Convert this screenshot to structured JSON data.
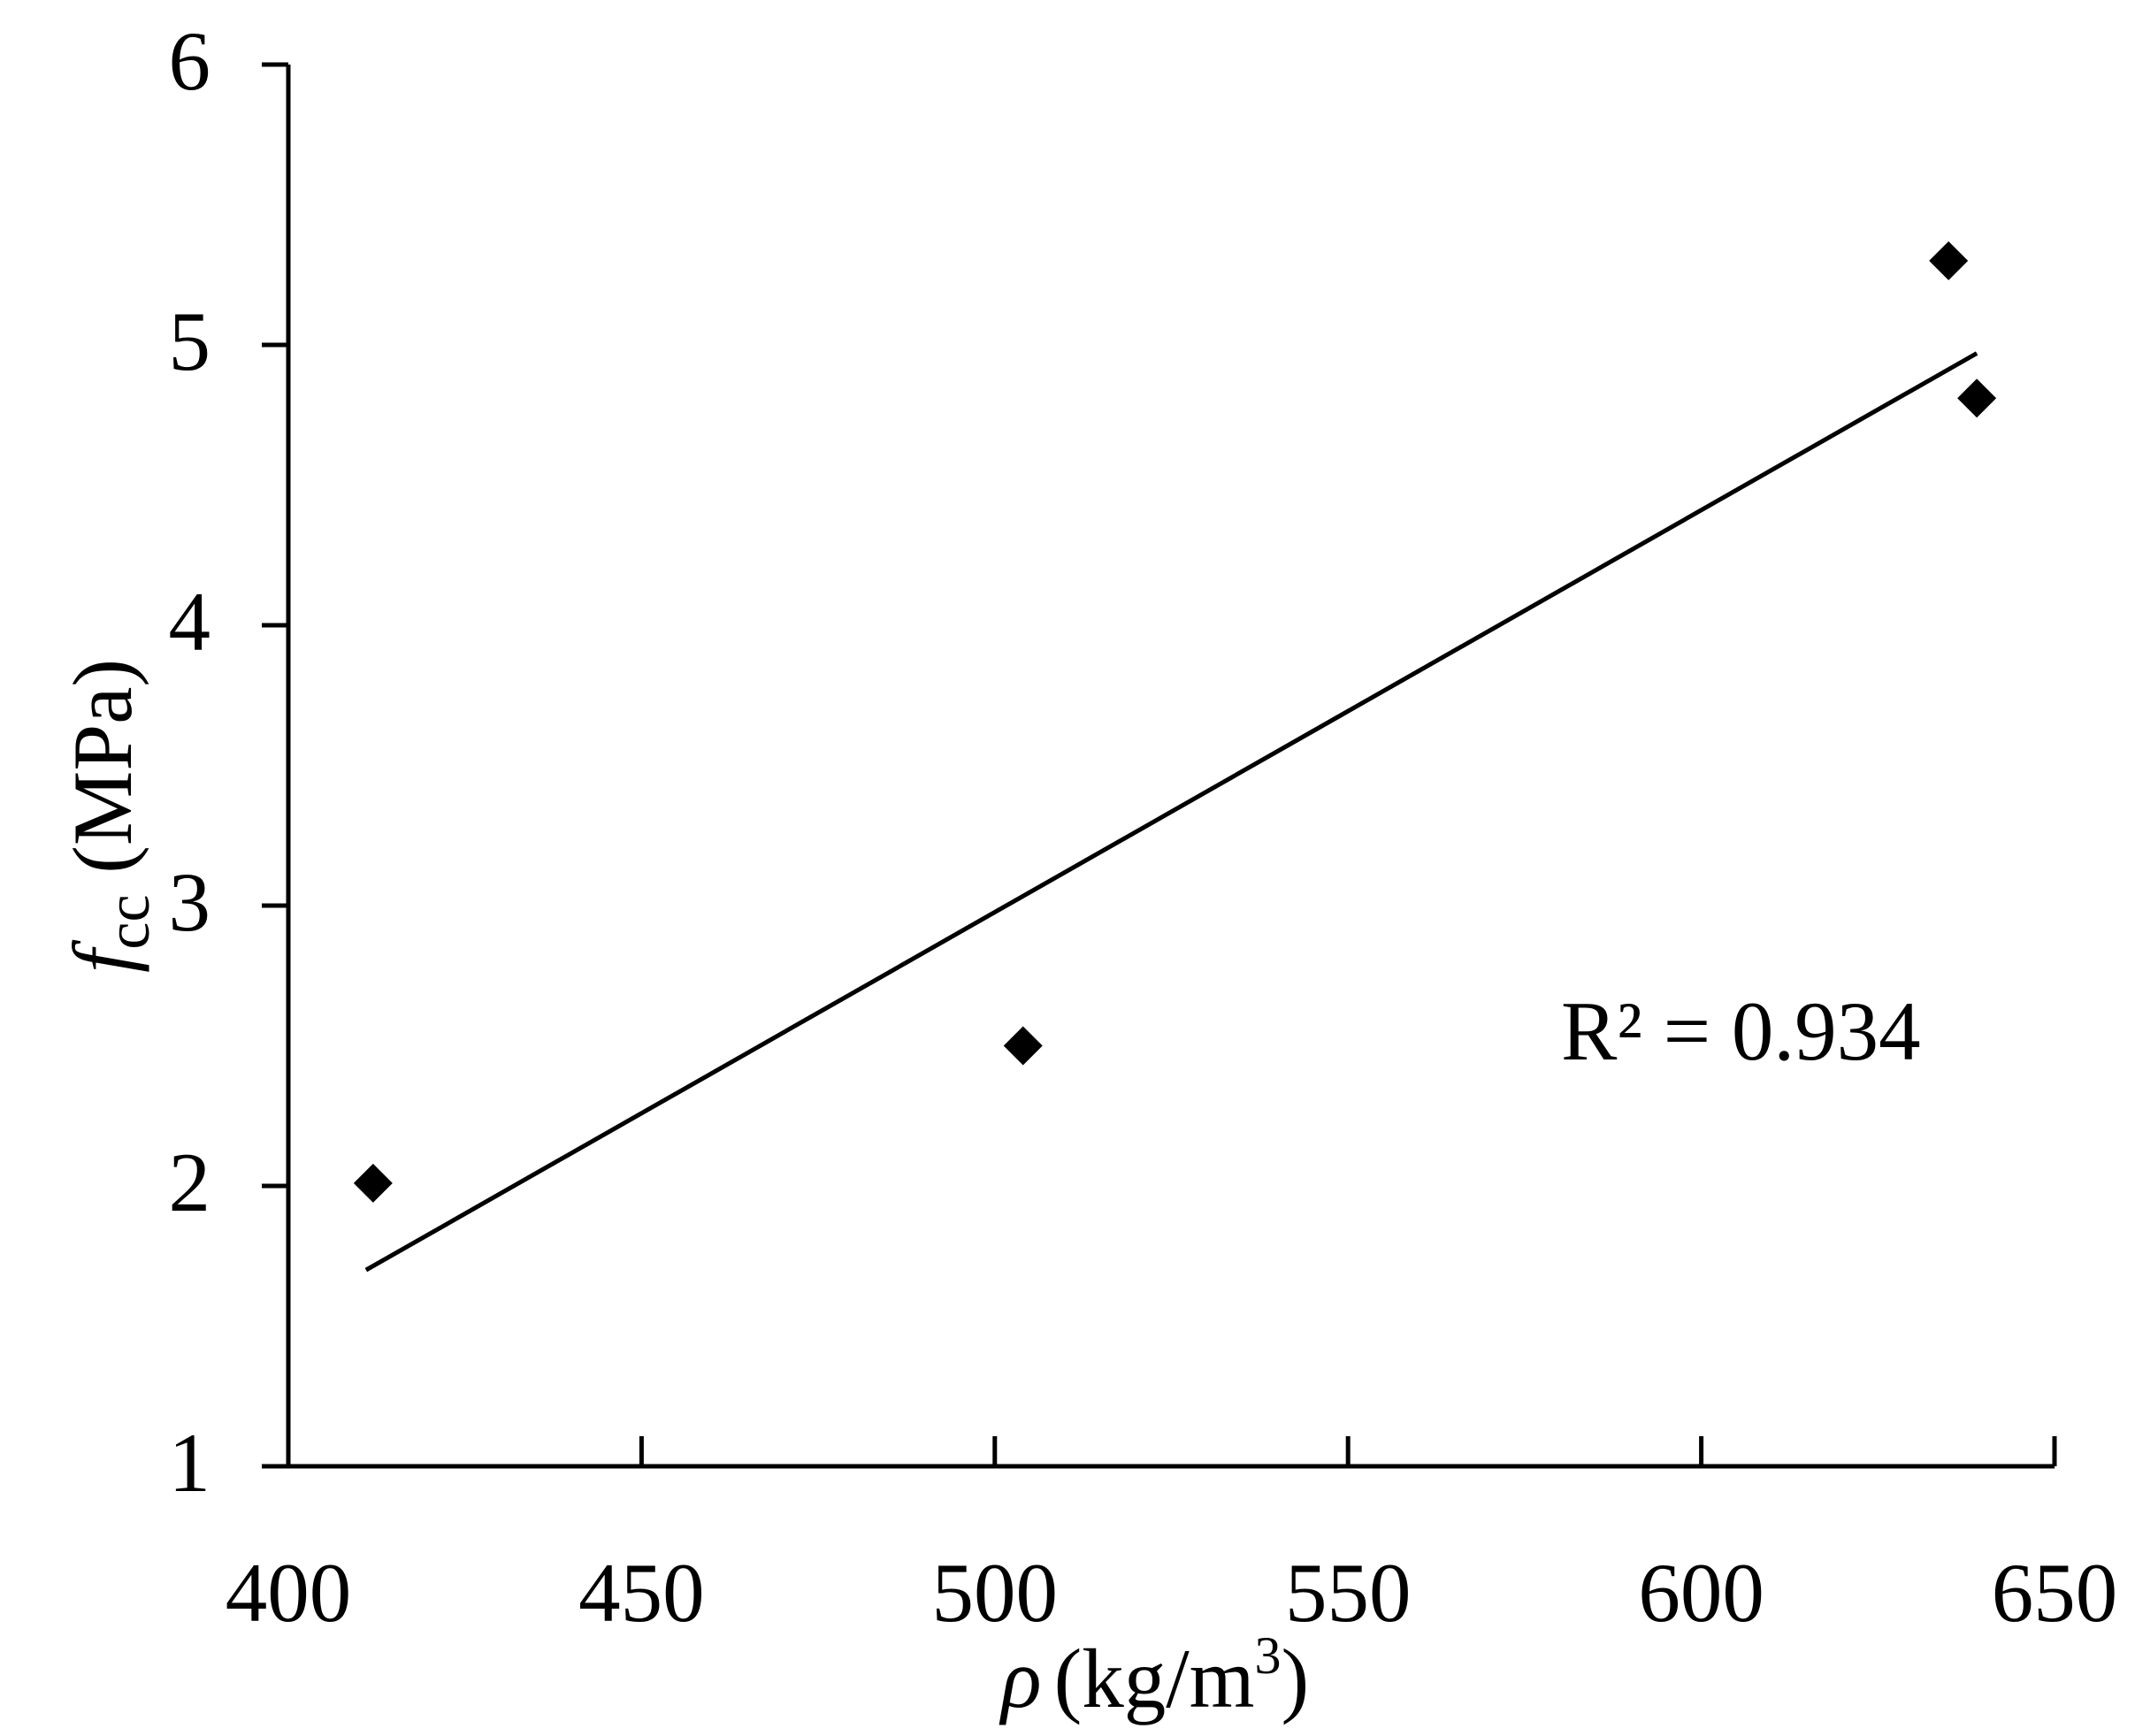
{
  "chart_data": {
    "type": "scatter",
    "title": "",
    "x_axis": {
      "label_symbol": "ρ",
      "label_unit": "(kg/m",
      "label_unit_sup": "3",
      "label_unit_close": ")",
      "min": 400,
      "max": 650,
      "ticks": [
        400,
        450,
        500,
        550,
        600,
        650
      ]
    },
    "y_axis": {
      "label_symbol": "f",
      "label_subscript": "cc",
      "label_unit": " (MPa)",
      "min": 1,
      "max": 6,
      "ticks": [
        1,
        2,
        3,
        4,
        5,
        6
      ]
    },
    "series": [
      {
        "marker": "diamond",
        "color": "#000000",
        "points": [
          {
            "x": 412,
            "y": 2.01
          },
          {
            "x": 504,
            "y": 2.5
          },
          {
            "x": 635,
            "y": 5.3
          },
          {
            "x": 639,
            "y": 4.81
          }
        ]
      }
    ],
    "trendline": {
      "type": "linear",
      "color": "#000000",
      "x_start": 411,
      "y_start": 1.7,
      "x_end": 639,
      "y_end": 4.97
    },
    "annotation": "R² = 0.934",
    "grid": false,
    "legend": "none"
  }
}
